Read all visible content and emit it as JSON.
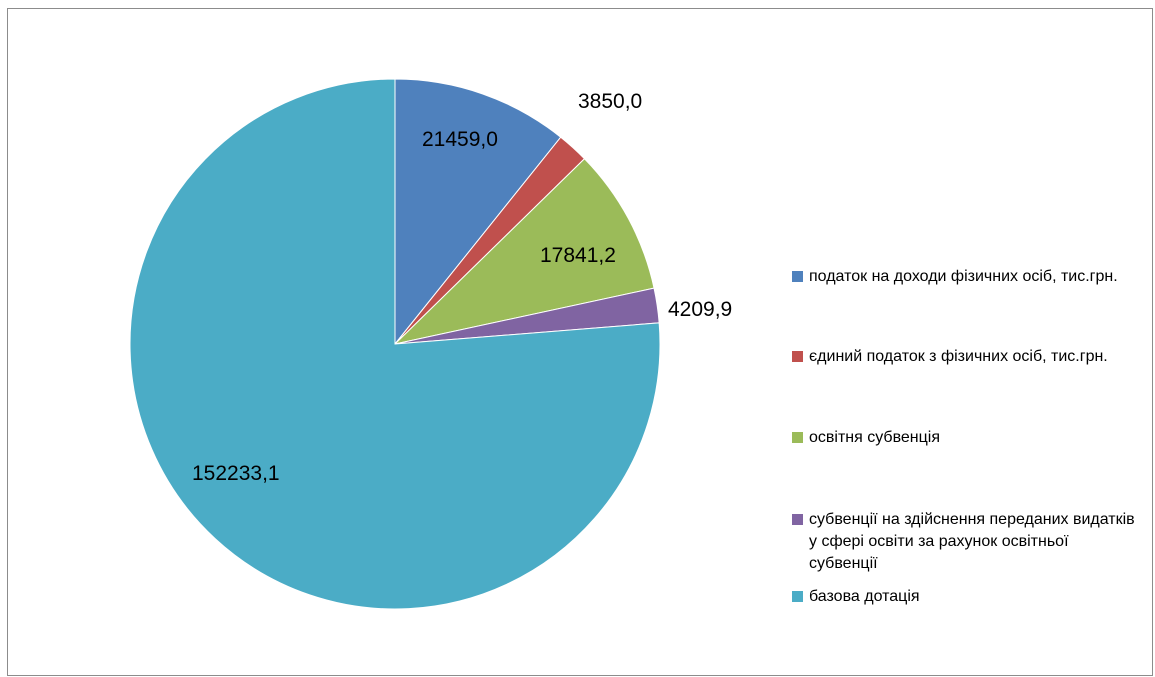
{
  "chart_data": {
    "type": "pie",
    "title": "",
    "categories": [
      "податок на доходи фізичних осіб, тис.грн.",
      "єдиний податок з фізичних осіб, тис.грн.",
      "освітня субвенція",
      "субвенції на здійснення переданих видатків у сфері освіти за рахунок освітньої субвенції",
      "базова дотація"
    ],
    "values": [
      21459.0,
      3850.0,
      17841.2,
      4209.9,
      152233.1
    ],
    "value_labels": [
      "21459,0",
      "3850,0",
      "17841,2",
      "4209,9",
      "152233,1"
    ],
    "colors": [
      "#4f81bd",
      "#c0504d",
      "#9bbb59",
      "#8064a2",
      "#4bacc6"
    ],
    "legend_position": "right"
  },
  "legend": {
    "items": [
      {
        "label": "податок на доходи фізичних осіб, тис.грн.",
        "color": "#4f81bd"
      },
      {
        "label": "єдиний податок з фізичних осіб, тис.грн.",
        "color": "#c0504d"
      },
      {
        "label": "освітня субвенція",
        "color": "#9bbb59"
      },
      {
        "label": "субвенції на здійснення переданих видатків у сфері освіти за рахунок освітньої субвенції",
        "color": "#8064a2"
      },
      {
        "label": "базова дотація",
        "color": "#4bacc6"
      }
    ]
  }
}
